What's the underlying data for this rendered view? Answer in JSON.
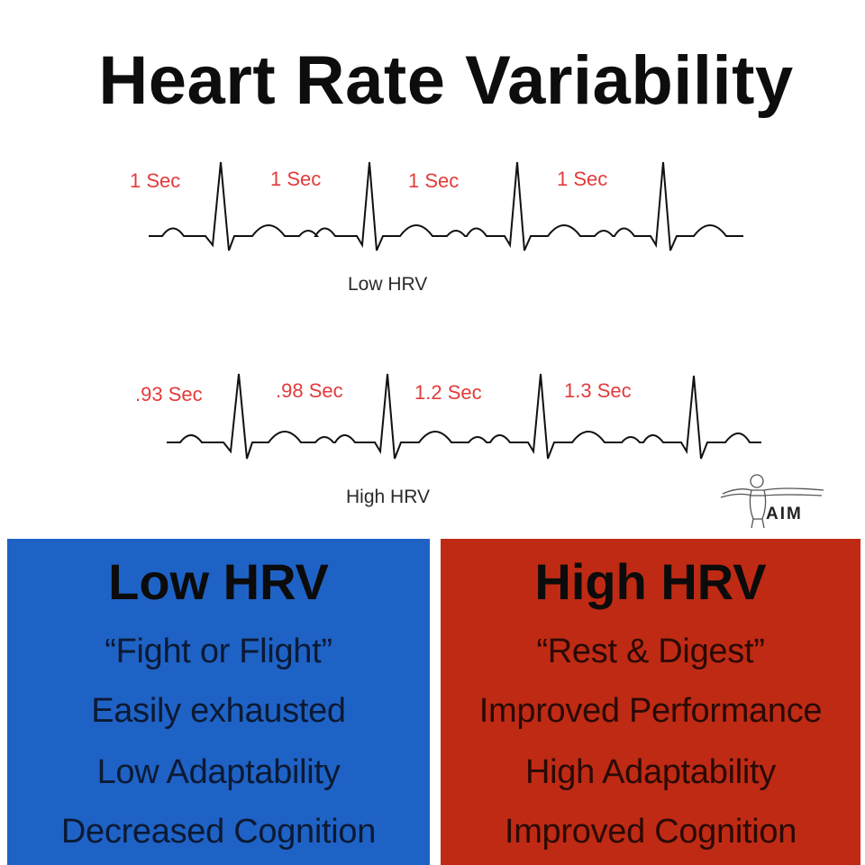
{
  "title": "Heart Rate Variability",
  "strips": {
    "low": {
      "caption": "Low HRV",
      "intervals": [
        "1 Sec",
        "1 Sec",
        "1 Sec",
        "1 Sec"
      ]
    },
    "high": {
      "caption": "High HRV",
      "intervals": [
        ".93 Sec",
        ".98 Sec",
        "1.2 Sec",
        "1.3 Sec"
      ]
    }
  },
  "logo": {
    "text": "AIM"
  },
  "panels": {
    "low": {
      "title": "Low HRV",
      "items": [
        "“Fight or Flight”",
        "Easily exhausted",
        "Low Adaptability",
        "Decreased Cognition"
      ]
    },
    "high": {
      "title": "High HRV",
      "items": [
        "“Rest & Digest”",
        "Improved Performance",
        "High Adaptability",
        "Improved Cognition"
      ]
    }
  },
  "colors": {
    "low_panel": "#1f62c6",
    "high_panel": "#bf2a14",
    "interval_label": "#e23b3b",
    "trace": "#111111"
  }
}
